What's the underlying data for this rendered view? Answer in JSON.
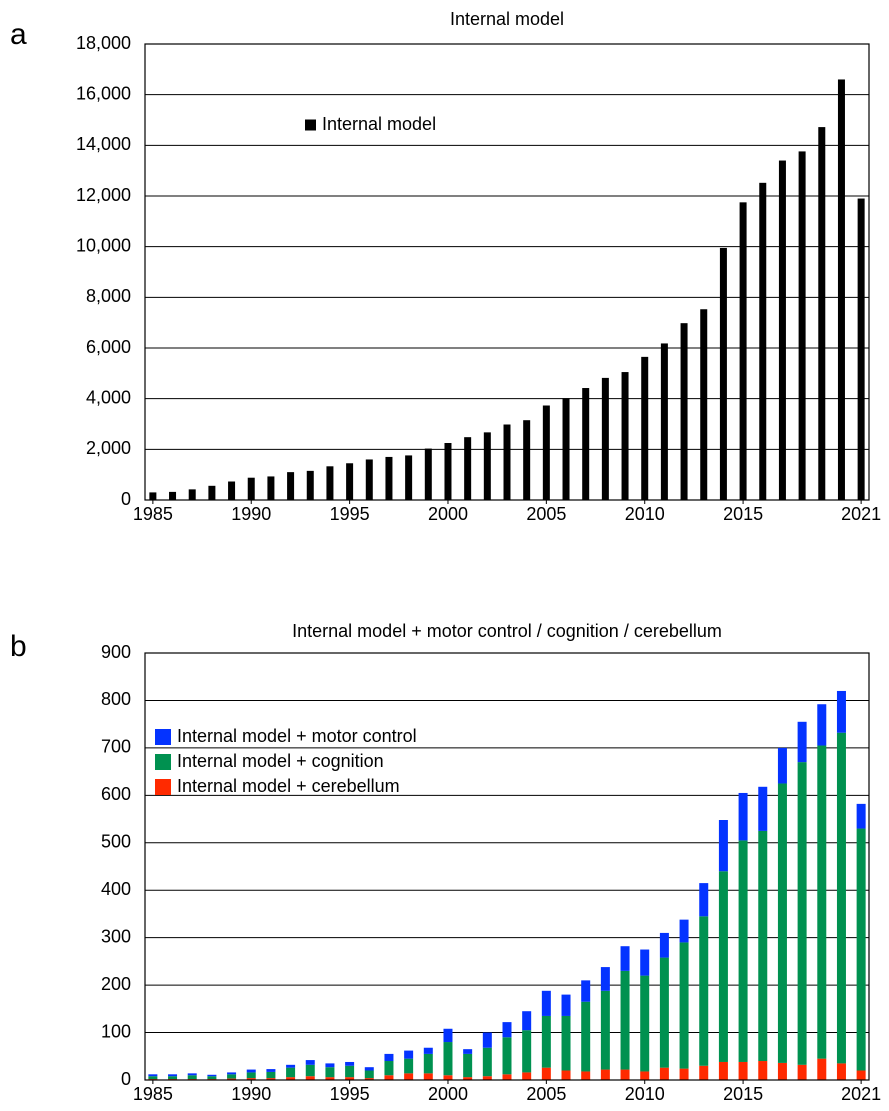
{
  "chart_data": [
    {
      "type": "bar",
      "panel_label": "a",
      "title": "Internal model",
      "x": [
        1985,
        1986,
        1987,
        1988,
        1989,
        1990,
        1991,
        1992,
        1993,
        1994,
        1995,
        1996,
        1997,
        1998,
        1999,
        2000,
        2001,
        2002,
        2003,
        2004,
        2005,
        2006,
        2007,
        2008,
        2009,
        2010,
        2011,
        2012,
        2013,
        2014,
        2015,
        2016,
        2017,
        2018,
        2019,
        2020,
        2021
      ],
      "series": [
        {
          "name": "Internal model",
          "color": "#000000",
          "values": [
            300,
            320,
            420,
            560,
            730,
            880,
            930,
            1100,
            1150,
            1330,
            1450,
            1600,
            1700,
            1760,
            2030,
            2250,
            2480,
            2670,
            2980,
            3150,
            3730,
            4020,
            4420,
            4820,
            5050,
            5650,
            6180,
            6980,
            7530,
            9950,
            11750,
            12520,
            13400,
            13760,
            14720,
            16600,
            11900
          ]
        }
      ],
      "xlim": [
        1984.6,
        2021.4
      ],
      "xticks": [
        1985,
        1990,
        1995,
        2000,
        2005,
        2010,
        2015,
        2021
      ],
      "ylim": [
        0,
        18000
      ],
      "yticks": [
        0,
        {
          "value": 2000,
          "label": "2,000"
        },
        {
          "value": 4000,
          "label": "4,000"
        },
        {
          "value": 6000,
          "label": "6,000"
        },
        {
          "value": 8000,
          "label": "8,000"
        },
        {
          "value": 10000,
          "label": "10,000"
        },
        {
          "value": 12000,
          "label": "12,000"
        },
        {
          "value": 14000,
          "label": "14,000"
        },
        {
          "value": 16000,
          "label": "16,000"
        },
        {
          "value": 18000,
          "label": "18,000"
        }
      ],
      "grid": true,
      "stacked": false,
      "legend": "upper left"
    },
    {
      "type": "bar",
      "panel_label": "b",
      "title": "Internal model + motor control / cognition / cerebellum",
      "x": [
        1985,
        1986,
        1987,
        1988,
        1989,
        1990,
        1991,
        1992,
        1993,
        1994,
        1995,
        1996,
        1997,
        1998,
        1999,
        2000,
        2001,
        2002,
        2003,
        2004,
        2005,
        2006,
        2007,
        2008,
        2009,
        2010,
        2011,
        2012,
        2013,
        2014,
        2015,
        2016,
        2017,
        2018,
        2019,
        2020,
        2021
      ],
      "series": [
        {
          "name": "Internal model + cerebellum",
          "color": "#ff2a00",
          "values": [
            2,
            2,
            2,
            2,
            3,
            4,
            4,
            6,
            8,
            6,
            6,
            4,
            10,
            14,
            14,
            10,
            6,
            8,
            12,
            16,
            26,
            20,
            18,
            22,
            22,
            18,
            26,
            24,
            30,
            38,
            38,
            40,
            36,
            32,
            45,
            35,
            20
          ]
        },
        {
          "name": "Internal model + cognition",
          "color": "#009150",
          "values": [
            6,
            6,
            8,
            6,
            9,
            12,
            13,
            20,
            24,
            21,
            24,
            16,
            30,
            31,
            41,
            70,
            49,
            60,
            78,
            89,
            109,
            115,
            147,
            166,
            208,
            202,
            232,
            266,
            315,
            402,
            467,
            485,
            589,
            638,
            660,
            697,
            510
          ]
        },
        {
          "name": "Internal model + motor control",
          "color": "#0433ff",
          "values": [
            4,
            4,
            4,
            3,
            4,
            6,
            6,
            6,
            10,
            8,
            8,
            7,
            15,
            17,
            13,
            28,
            10,
            32,
            32,
            40,
            53,
            45,
            45,
            50,
            52,
            55,
            52,
            48,
            70,
            108,
            100,
            93,
            75,
            85,
            87,
            88,
            52
          ]
        }
      ],
      "xlim": [
        1984.6,
        2021.4
      ],
      "xticks": [
        1985,
        1990,
        1995,
        2000,
        2005,
        2010,
        2015,
        2021
      ],
      "ylim": [
        0,
        900
      ],
      "yticks": [
        0,
        100,
        200,
        300,
        400,
        500,
        600,
        700,
        800,
        900
      ],
      "grid": true,
      "stacked": true,
      "legend": "upper left"
    }
  ]
}
